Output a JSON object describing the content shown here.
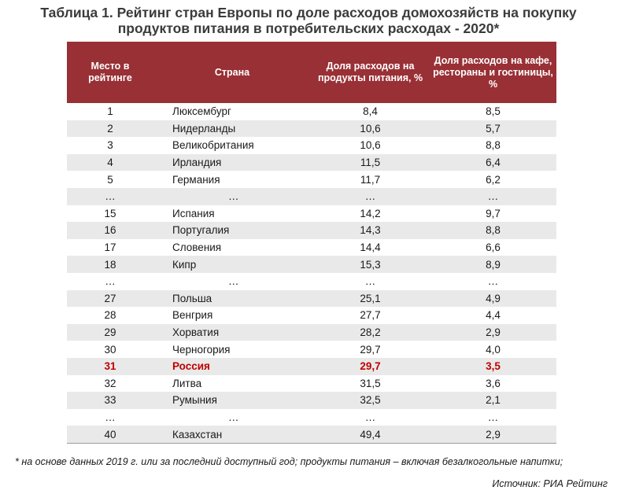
{
  "title": {
    "line1": "Таблица 1. Рейтинг стран Европы по доле расходов домохозяйств на покупку",
    "line2": "продуктов питания в потребительских расходах - 2020*"
  },
  "table": {
    "headers": {
      "rank": "Место в рейтинге",
      "country": "Страна",
      "food": "Доля расходов на продукты питания, %",
      "cafe": "Доля расходов на кафе, рестораны и гостиницы, %"
    },
    "rows": [
      {
        "rank": "1",
        "country": "Люксембург",
        "food": "8,4",
        "cafe": "8,5"
      },
      {
        "rank": "2",
        "country": "Нидерланды",
        "food": "10,6",
        "cafe": "5,7"
      },
      {
        "rank": "3",
        "country": "Великобритания",
        "food": "10,6",
        "cafe": "8,8"
      },
      {
        "rank": "4",
        "country": "Ирландия",
        "food": "11,5",
        "cafe": "6,4"
      },
      {
        "rank": "5",
        "country": "Германия",
        "food": "11,7",
        "cafe": "6,2"
      },
      {
        "rank": "…",
        "country": "…",
        "food": "…",
        "cafe": "…",
        "ellipsis": true
      },
      {
        "rank": "15",
        "country": "Испания",
        "food": "14,2",
        "cafe": "9,7"
      },
      {
        "rank": "16",
        "country": "Португалия",
        "food": "14,3",
        "cafe": "8,8"
      },
      {
        "rank": "17",
        "country": "Словения",
        "food": "14,4",
        "cafe": "6,6"
      },
      {
        "rank": "18",
        "country": "Кипр",
        "food": "15,3",
        "cafe": "8,9"
      },
      {
        "rank": "…",
        "country": "…",
        "food": "…",
        "cafe": "…",
        "ellipsis": true
      },
      {
        "rank": "27",
        "country": "Польша",
        "food": "25,1",
        "cafe": "4,9"
      },
      {
        "rank": "28",
        "country": "Венгрия",
        "food": "27,7",
        "cafe": "4,4"
      },
      {
        "rank": "29",
        "country": "Хорватия",
        "food": "28,2",
        "cafe": "2,9"
      },
      {
        "rank": "30",
        "country": "Черногория",
        "food": "29,7",
        "cafe": "4,0"
      },
      {
        "rank": "31",
        "country": "Россия",
        "food": "29,7",
        "cafe": "3,5",
        "highlight": true
      },
      {
        "rank": "32",
        "country": "Литва",
        "food": "31,5",
        "cafe": "3,6"
      },
      {
        "rank": "33",
        "country": "Румыния",
        "food": "32,5",
        "cafe": "2,1"
      },
      {
        "rank": "…",
        "country": "…",
        "food": "…",
        "cafe": "…",
        "ellipsis": true
      },
      {
        "rank": "40",
        "country": "Казахстан",
        "food": "49,4",
        "cafe": "2,9"
      }
    ]
  },
  "footnote": "* на основе данных 2019 г. или за последний доступный год; продукты питания – включая безалкогольные напитки;",
  "source": "Источник: РИА Рейтинг",
  "colors": {
    "header_bg": "#983035",
    "highlight_text": "#c00000",
    "stripe": "#e9e9e9"
  }
}
